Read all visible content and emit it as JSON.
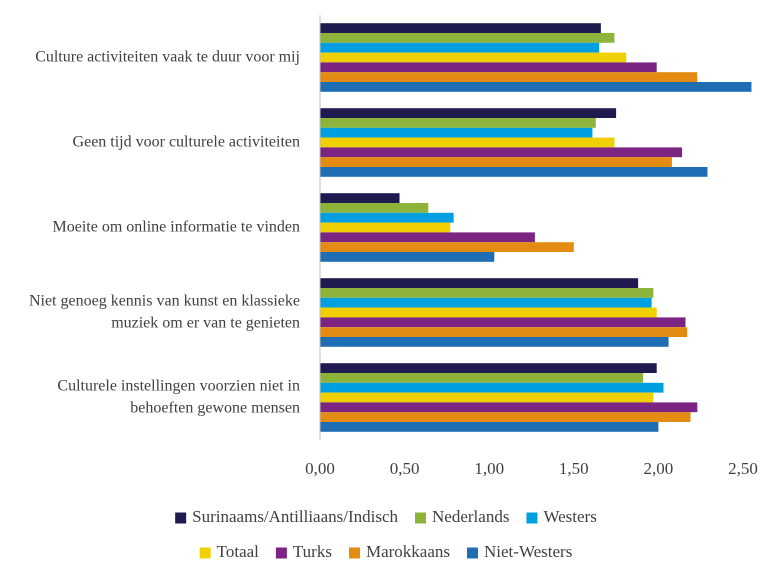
{
  "chart_data": {
    "type": "barh",
    "categories": [
      "Culture activiteiten vaak te duur voor mij",
      "Geen tijd voor culturele activiteiten",
      "Moeite om online informatie te vinden",
      "Niet genoeg kennis van kunst en klassieke muziek om er van te genieten",
      "Culturele instellingen voorzien niet in behoeften gewone mensen"
    ],
    "series": [
      {
        "name": "Surinaams/Antilliaans/Indisch",
        "color": "#201b4f",
        "values": [
          1.66,
          1.75,
          0.47,
          1.88,
          1.99
        ]
      },
      {
        "name": "Nederlands",
        "color": "#8db33a",
        "values": [
          1.74,
          1.63,
          0.64,
          1.97,
          1.91
        ]
      },
      {
        "name": "Westers",
        "color": "#00a0e0",
        "values": [
          1.65,
          1.61,
          0.79,
          1.96,
          2.03
        ]
      },
      {
        "name": "Totaal",
        "color": "#f0d000",
        "values": [
          1.81,
          1.74,
          0.77,
          1.99,
          1.97
        ]
      },
      {
        "name": "Turks",
        "color": "#7b2482",
        "values": [
          1.99,
          2.14,
          1.27,
          2.16,
          2.23
        ]
      },
      {
        "name": "Marokkaans",
        "color": "#e38b12",
        "values": [
          2.23,
          2.08,
          1.5,
          2.17,
          2.19
        ]
      },
      {
        "name": "Niet-Westers",
        "color": "#1f6db3",
        "values": [
          2.55,
          2.29,
          1.03,
          2.06,
          2.0
        ]
      }
    ],
    "xlim": [
      0,
      2.5
    ],
    "xticks": [
      {
        "value": 0,
        "label": "0,00"
      },
      {
        "value": 0.5,
        "label": "0,50"
      },
      {
        "value": 1,
        "label": "1,00"
      },
      {
        "value": 1.5,
        "label": "1,50"
      },
      {
        "value": 2,
        "label": "2,00"
      },
      {
        "value": 2.5,
        "label": "2,50"
      }
    ],
    "legend_rows": [
      3,
      4
    ]
  }
}
